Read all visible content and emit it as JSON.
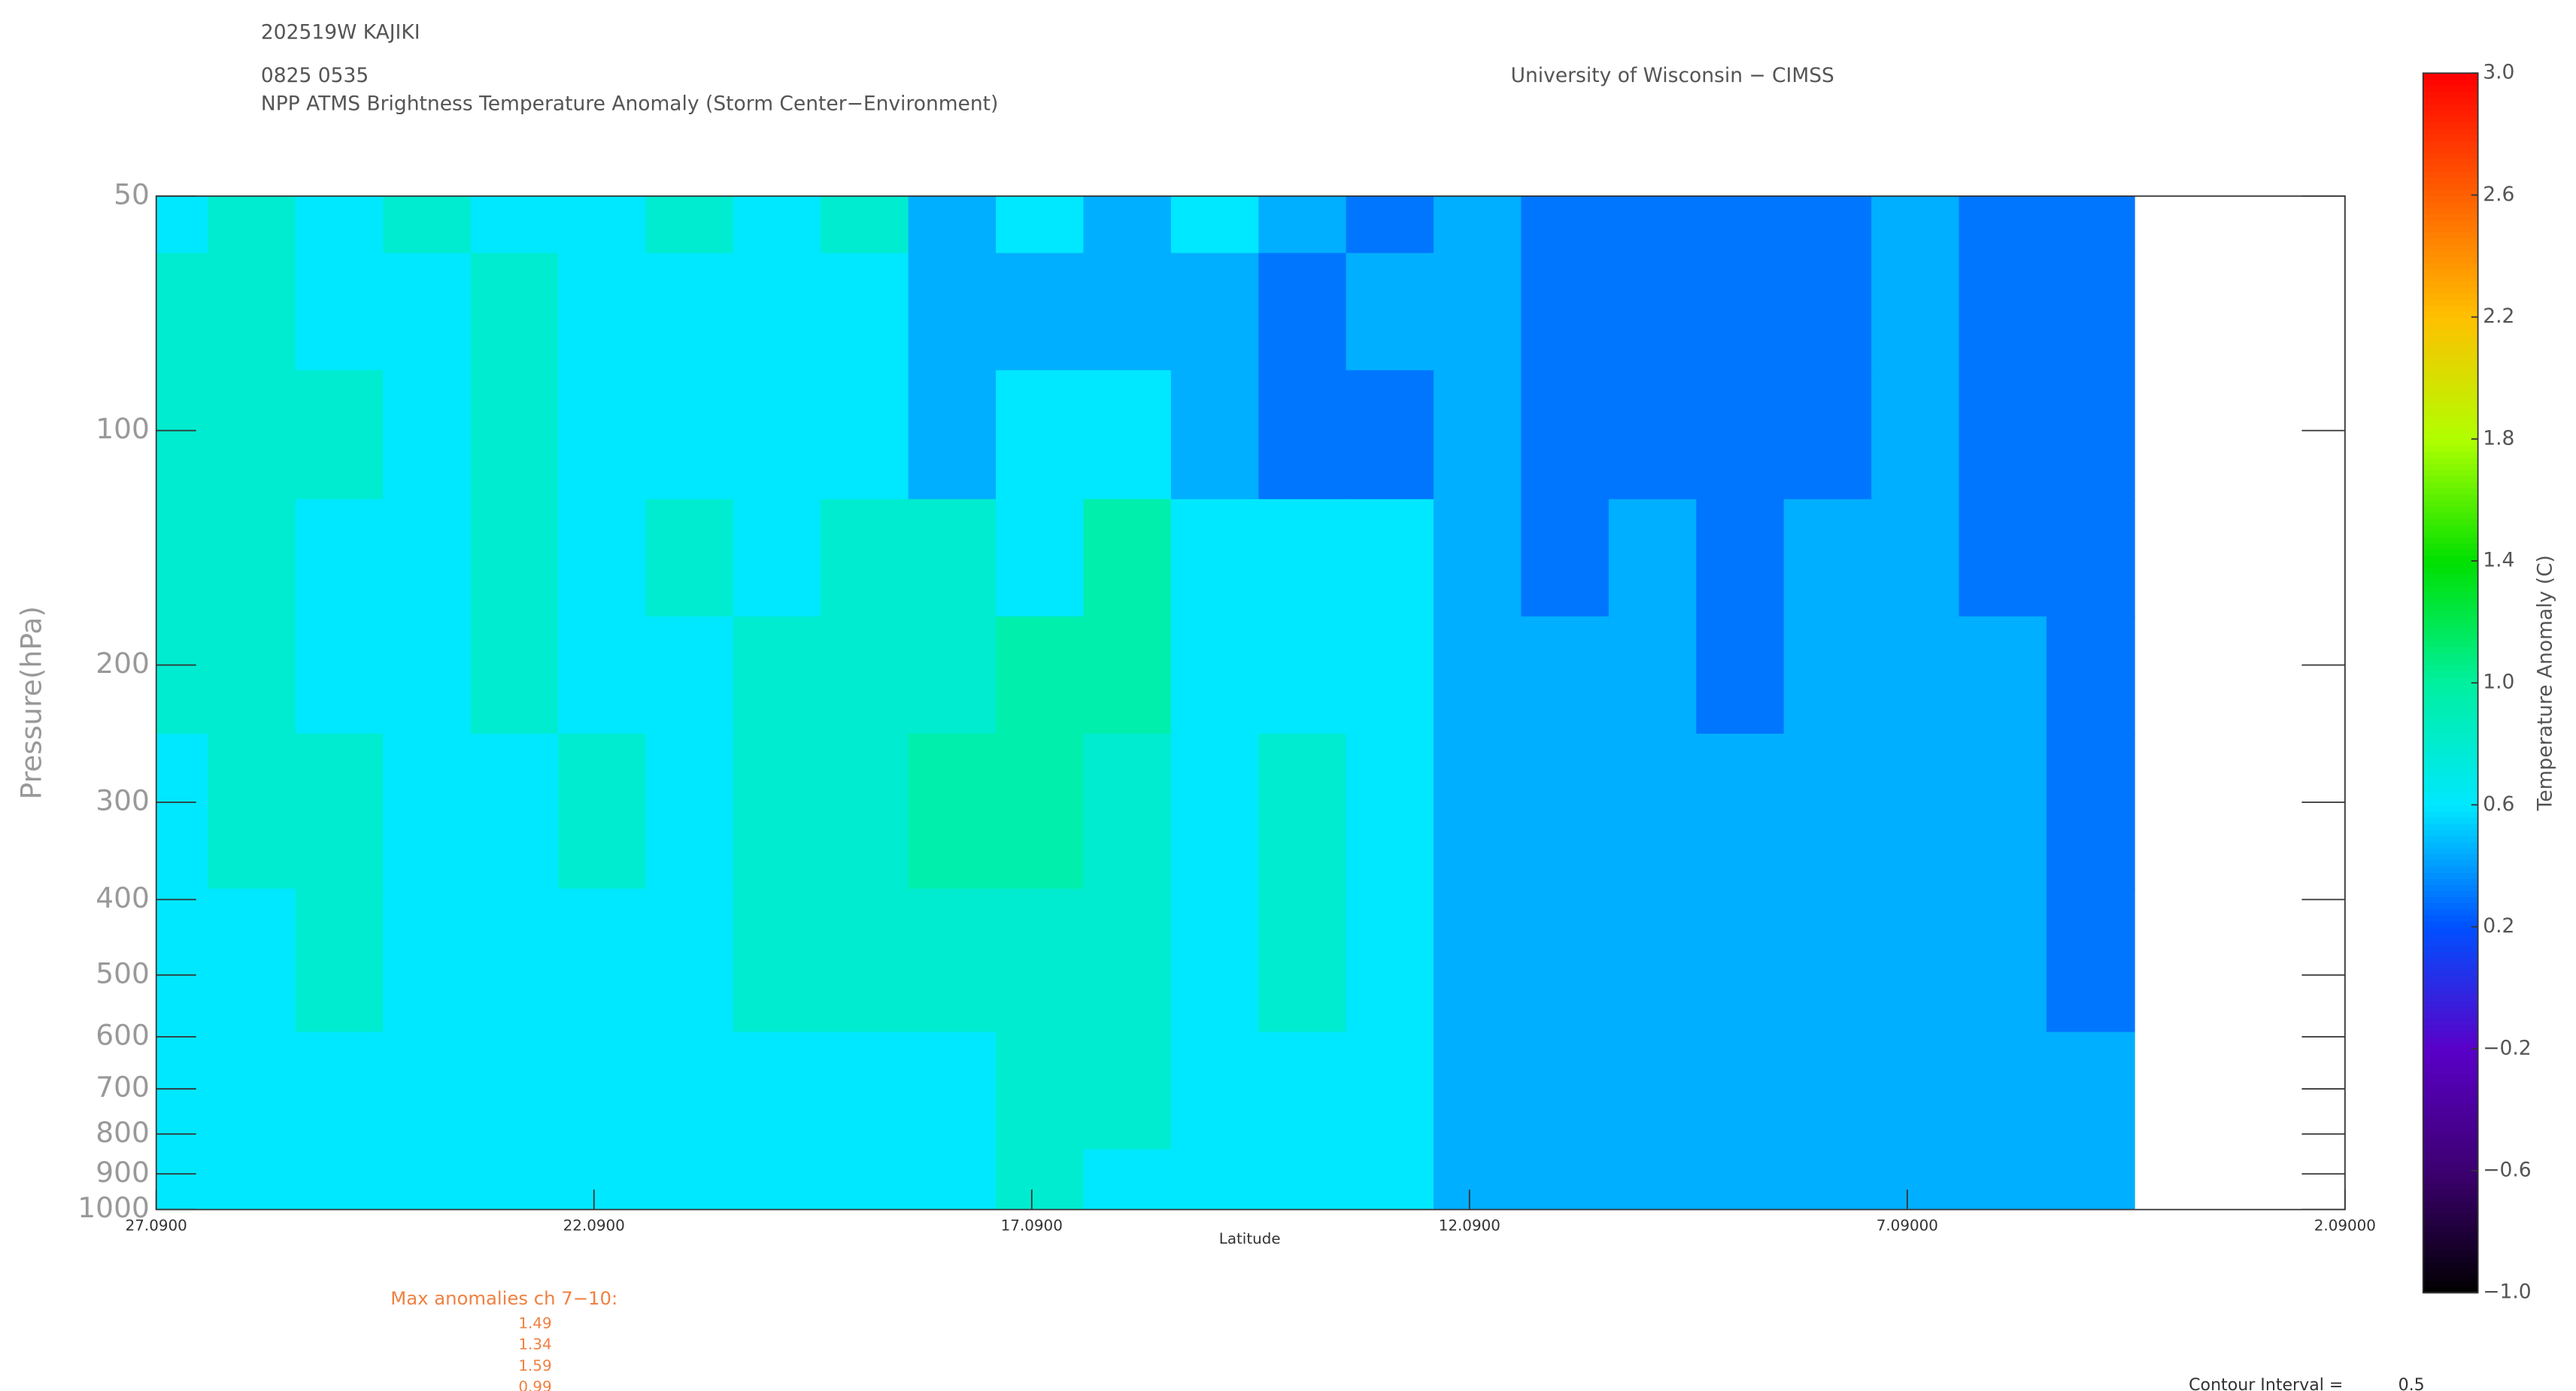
{
  "chart_data": {
    "type": "contour",
    "header": "202519W KAJIKI",
    "time": "0825 0535",
    "title": "NPP ATMS Brightness Temperature Anomaly (Storm Center−Environment)",
    "source": "University of Wisconsin − CIMSS",
    "xlabel": "Latitude",
    "ylabel": "Pressure(hPa)",
    "colorbar_label": "Temperature Anomaly (C)",
    "xlim": [
      27.09,
      2.09
    ],
    "xticks": [
      {
        "value": 27.09,
        "label": "27.0900"
      },
      {
        "value": 22.09,
        "label": "22.0900"
      },
      {
        "value": 17.09,
        "label": "17.0900"
      },
      {
        "value": 12.09,
        "label": "12.0900"
      },
      {
        "value": 7.09,
        "label": "7.09000"
      },
      {
        "value": 2.09,
        "label": "2.09000"
      }
    ],
    "ylim": [
      50,
      1000
    ],
    "ylog": true,
    "yticks": [
      50,
      100,
      200,
      300,
      400,
      500,
      600,
      700,
      800,
      900,
      1000
    ],
    "zlim": [
      -1,
      3
    ],
    "zticks": [
      {
        "value": -1,
        "label": "−1.0"
      },
      {
        "value": -0.6,
        "label": "−0.6"
      },
      {
        "value": -0.2,
        "label": "−0.2"
      },
      0.2,
      0.6,
      {
        "value": 1,
        "label": "1.0"
      },
      1.4,
      1.8,
      2.2,
      2.6,
      {
        "value": 3,
        "label": "3.0"
      }
    ],
    "colormap": [
      "#000000",
      "#3c0070",
      "#5a00c8",
      "#0050ff",
      "#00e8ff",
      "#00f0a0",
      "#00e000",
      "#b0ff00",
      "#ffc000",
      "#ff6000",
      "#ff0000"
    ],
    "x": [
      27,
      26,
      25,
      24,
      23,
      22,
      21,
      20,
      19,
      18,
      17,
      16,
      15,
      14,
      13,
      12,
      11,
      10,
      9,
      8,
      7,
      6,
      5
    ],
    "y": [
      50,
      70,
      100,
      150,
      200,
      300,
      500,
      700,
      1000
    ],
    "z": [
      [
        0.6,
        0.8,
        0.6,
        0.8,
        0.6,
        0.6,
        0.8,
        0.6,
        0.8,
        0.45,
        0.6,
        0.45,
        0.6,
        0.45,
        0.3,
        0.45,
        0.3,
        0.3,
        0.3,
        0.3,
        0.45,
        0.3,
        0.3
      ],
      [
        0.8,
        0.8,
        0.6,
        0.6,
        0.8,
        0.6,
        0.6,
        0.6,
        0.6,
        0.45,
        0.45,
        0.45,
        0.45,
        0.3,
        0.45,
        0.45,
        0.3,
        0.3,
        0.3,
        0.3,
        0.45,
        0.3,
        0.3
      ],
      [
        0.8,
        0.8,
        0.8,
        0.6,
        0.8,
        0.6,
        0.6,
        0.6,
        0.6,
        0.45,
        0.6,
        0.6,
        0.45,
        0.3,
        0.3,
        0.45,
        0.3,
        0.3,
        0.3,
        0.3,
        0.45,
        0.3,
        0.3
      ],
      [
        0.8,
        0.8,
        0.6,
        0.6,
        0.8,
        0.6,
        0.8,
        0.6,
        0.8,
        0.8,
        0.6,
        0.95,
        0.6,
        0.6,
        0.6,
        0.45,
        0.3,
        0.45,
        0.3,
        0.45,
        0.45,
        0.3,
        0.3
      ],
      [
        0.8,
        0.8,
        0.6,
        0.6,
        0.8,
        0.6,
        0.6,
        0.8,
        0.8,
        0.8,
        0.95,
        0.95,
        0.6,
        0.6,
        0.6,
        0.45,
        0.45,
        0.45,
        0.3,
        0.45,
        0.45,
        0.45,
        0.3
      ],
      [
        0.6,
        0.8,
        0.8,
        0.6,
        0.6,
        0.8,
        0.6,
        0.8,
        0.8,
        0.95,
        0.95,
        0.8,
        0.6,
        0.8,
        0.6,
        0.45,
        0.45,
        0.45,
        0.45,
        0.45,
        0.45,
        0.45,
        0.3
      ],
      [
        0.6,
        0.6,
        0.8,
        0.6,
        0.6,
        0.6,
        0.6,
        0.8,
        0.8,
        0.8,
        0.8,
        0.8,
        0.6,
        0.8,
        0.6,
        0.45,
        0.45,
        0.45,
        0.45,
        0.45,
        0.45,
        0.45,
        0.3
      ],
      [
        0.6,
        0.6,
        0.6,
        0.6,
        0.6,
        0.6,
        0.6,
        0.6,
        0.6,
        0.6,
        0.8,
        0.8,
        0.6,
        0.6,
        0.6,
        0.45,
        0.45,
        0.45,
        0.45,
        0.45,
        0.45,
        0.45,
        0.45
      ],
      [
        0.6,
        0.6,
        0.6,
        0.6,
        0.6,
        0.6,
        0.6,
        0.6,
        0.6,
        0.6,
        0.8,
        0.6,
        0.6,
        0.6,
        0.6,
        0.45,
        0.45,
        0.45,
        0.45,
        0.45,
        0.45,
        0.45,
        0.45
      ]
    ],
    "max_anomalies_label": "Max anomalies ch 7−10:",
    "max_anomalies": [
      1.49,
      1.34,
      1.59,
      0.99
    ],
    "contour_interval_label": "Contour Interval =",
    "contour_interval": 0.5
  }
}
